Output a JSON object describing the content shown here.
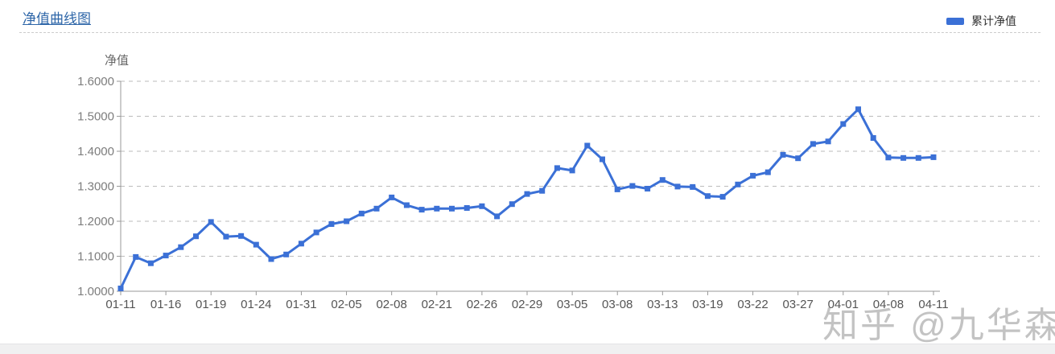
{
  "header": {
    "title": "净值曲线图"
  },
  "legend": {
    "label": "累计净值",
    "swatch_color": "#3b70d6"
  },
  "watermark": {
    "text": "知乎 @九华森"
  },
  "chart_data": {
    "type": "line",
    "title": "净值曲线图",
    "legend_entries": [
      "累计净值"
    ],
    "legend_position": "top-right",
    "grid": true,
    "line_color": "#3b70d6",
    "xlabel": "",
    "ylabel": "净值",
    "yaxis": {
      "name": "净值",
      "min": 1.0,
      "max": 1.6,
      "tick_labels": [
        "1.0000",
        "1.1000",
        "1.2000",
        "1.3000",
        "1.4000",
        "1.5000",
        "1.6000"
      ]
    },
    "x_tick_labels": [
      "01-11",
      "01-16",
      "01-19",
      "01-24",
      "01-31",
      "02-05",
      "02-08",
      "02-21",
      "02-26",
      "02-29",
      "03-05",
      "03-08",
      "03-13",
      "03-19",
      "03-22",
      "03-27",
      "04-01",
      "04-08",
      "04-11"
    ],
    "label_every_n_points": 3,
    "series": [
      {
        "name": "累计净值",
        "values": [
          1.008,
          1.098,
          1.08,
          1.102,
          1.126,
          1.157,
          1.198,
          1.156,
          1.158,
          1.133,
          1.092,
          1.105,
          1.136,
          1.168,
          1.192,
          1.2,
          1.222,
          1.236,
          1.268,
          1.246,
          1.233,
          1.236,
          1.236,
          1.238,
          1.243,
          1.214,
          1.249,
          1.278,
          1.287,
          1.352,
          1.345,
          1.416,
          1.377,
          1.291,
          1.301,
          1.293,
          1.318,
          1.299,
          1.298,
          1.272,
          1.27,
          1.305,
          1.33,
          1.34,
          1.39,
          1.38,
          1.421,
          1.428,
          1.478,
          1.52,
          1.438,
          1.382,
          1.381,
          1.381,
          1.383
        ]
      }
    ]
  }
}
